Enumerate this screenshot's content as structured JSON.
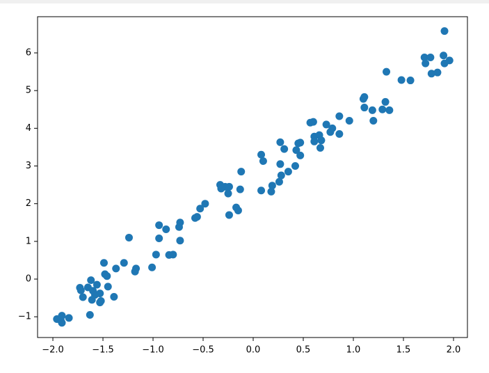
{
  "chart_data": {
    "type": "scatter",
    "color": "#1f77b4",
    "x": [
      -1.96,
      -1.92,
      -1.91,
      -1.91,
      -1.84,
      -1.73,
      -1.72,
      -1.7,
      -1.65,
      -1.63,
      -1.62,
      -1.61,
      -1.6,
      -1.58,
      -1.56,
      -1.53,
      -1.53,
      -1.52,
      -1.49,
      -1.48,
      -1.46,
      -1.45,
      -1.39,
      -1.37,
      -1.29,
      -1.24,
      -1.18,
      -1.17,
      -1.01,
      -0.97,
      -0.94,
      -0.94,
      -0.87,
      -0.84,
      -0.8,
      -0.74,
      -0.73,
      -0.73,
      -0.58,
      -0.56,
      -0.53,
      -0.48,
      -0.33,
      -0.32,
      -0.28,
      -0.24,
      -0.25,
      -0.24,
      -0.17,
      -0.15,
      -0.13,
      -0.12,
      0.08,
      0.1,
      0.08,
      0.18,
      0.19,
      0.26,
      0.27,
      0.27,
      0.28,
      0.31,
      0.35,
      0.42,
      0.43,
      0.45,
      0.47,
      0.47,
      0.57,
      0.6,
      0.61,
      0.61,
      0.66,
      0.67,
      0.68,
      0.73,
      0.77,
      0.79,
      0.86,
      0.86,
      0.96,
      1.1,
      1.11,
      1.11,
      1.19,
      1.2,
      1.29,
      1.32,
      1.33,
      1.36,
      1.48,
      1.57,
      1.71,
      1.72,
      1.77,
      1.78,
      1.84,
      1.9,
      1.91,
      1.91,
      1.96
    ],
    "values": [
      -1.06,
      -1.1,
      -1.16,
      -0.97,
      -1.03,
      -0.23,
      -0.3,
      -0.48,
      -0.22,
      -0.95,
      -0.03,
      -0.55,
      -0.31,
      -0.42,
      -0.15,
      -0.38,
      -0.62,
      -0.58,
      0.43,
      0.13,
      0.08,
      -0.2,
      -0.47,
      0.28,
      0.43,
      1.1,
      0.2,
      0.28,
      0.31,
      0.65,
      1.43,
      1.08,
      1.32,
      0.64,
      0.65,
      1.38,
      1.5,
      1.02,
      1.62,
      1.65,
      1.87,
      2.0,
      2.5,
      2.4,
      2.45,
      2.45,
      2.27,
      1.7,
      1.9,
      1.82,
      2.38,
      2.85,
      3.3,
      3.13,
      2.35,
      2.32,
      2.48,
      2.58,
      3.63,
      3.05,
      2.75,
      3.45,
      2.85,
      3.0,
      3.42,
      3.6,
      3.62,
      3.28,
      4.15,
      4.17,
      3.78,
      3.65,
      3.82,
      3.48,
      3.68,
      4.1,
      3.9,
      4.0,
      4.32,
      3.85,
      4.2,
      4.78,
      4.83,
      4.55,
      4.48,
      4.2,
      4.5,
      4.7,
      5.5,
      4.48,
      5.28,
      5.27,
      5.88,
      5.72,
      5.88,
      5.45,
      5.48,
      5.93,
      5.72,
      6.58,
      5.8
    ],
    "xlim": [
      -2.153,
      2.139
    ],
    "ylim": [
      -1.55,
      6.96
    ],
    "xticks": [
      {
        "value": -2,
        "label": "−2.0"
      },
      {
        "value": -1.5,
        "label": "−1.5"
      },
      {
        "value": -1,
        "label": "−1.0"
      },
      {
        "value": -0.5,
        "label": "−0.5"
      },
      {
        "value": 0,
        "label": "0.0"
      },
      0.5,
      {
        "value": 1,
        "label": "1.0"
      },
      1.5,
      {
        "value": 2,
        "label": "2.0"
      }
    ],
    "yticks": [
      {
        "value": -1,
        "label": "−1"
      },
      0,
      1,
      2,
      3,
      4,
      5,
      6
    ]
  }
}
